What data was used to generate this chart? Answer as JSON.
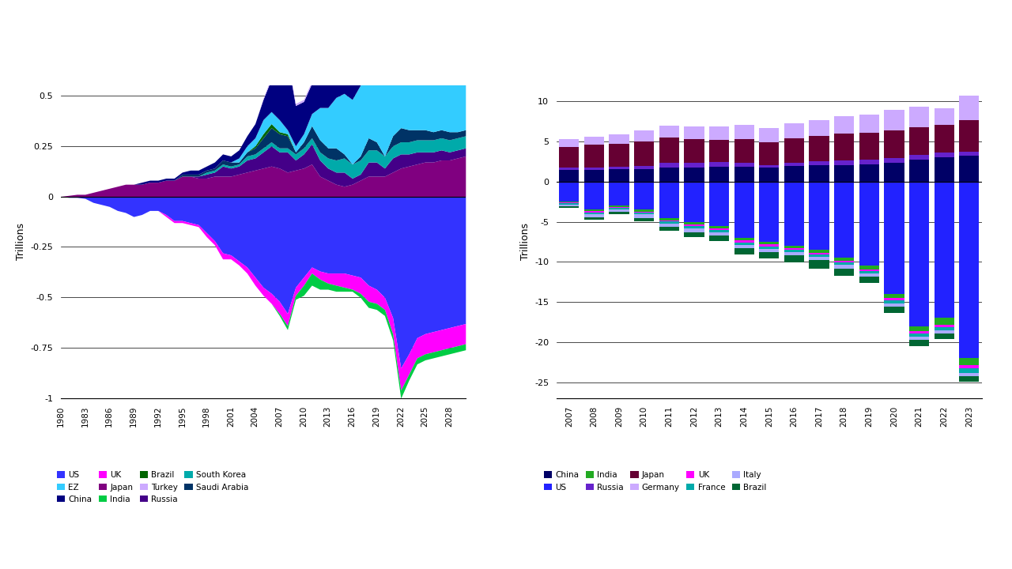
{
  "chart1": {
    "years": [
      1980,
      1981,
      1982,
      1983,
      1984,
      1985,
      1986,
      1987,
      1988,
      1989,
      1990,
      1991,
      1992,
      1993,
      1994,
      1995,
      1996,
      1997,
      1998,
      1999,
      2000,
      2001,
      2002,
      2003,
      2004,
      2005,
      2006,
      2007,
      2008,
      2009,
      2010,
      2011,
      2012,
      2013,
      2014,
      2015,
      2016,
      2017,
      2018,
      2019,
      2020,
      2021,
      2022,
      2023,
      2024,
      2025,
      2026,
      2027,
      2028,
      2029,
      2030
    ],
    "series": {
      "US": [
        0.0,
        -0.005,
        -0.005,
        -0.01,
        -0.03,
        -0.04,
        -0.05,
        -0.07,
        -0.08,
        -0.1,
        -0.09,
        -0.07,
        -0.07,
        -0.09,
        -0.12,
        -0.12,
        -0.13,
        -0.14,
        -0.18,
        -0.22,
        -0.28,
        -0.29,
        -0.32,
        -0.35,
        -0.4,
        -0.45,
        -0.48,
        -0.52,
        -0.58,
        -0.45,
        -0.4,
        -0.35,
        -0.37,
        -0.38,
        -0.38,
        -0.38,
        -0.39,
        -0.4,
        -0.44,
        -0.46,
        -0.5,
        -0.6,
        -0.85,
        -0.78,
        -0.7,
        -0.68,
        -0.67,
        -0.66,
        -0.65,
        -0.64,
        -0.63
      ],
      "EZ": [
        0.0,
        0.0,
        0.0,
        0.0,
        0.0,
        0.0,
        0.0,
        0.0,
        0.0,
        0.0,
        0.0,
        0.0,
        0.0,
        0.0,
        0.0,
        0.0,
        0.0,
        0.0,
        0.0,
        0.0,
        0.0,
        0.0,
        0.02,
        0.03,
        0.04,
        0.07,
        0.06,
        0.06,
        0.02,
        0.03,
        0.04,
        0.06,
        0.16,
        0.2,
        0.25,
        0.3,
        0.32,
        0.35,
        0.37,
        0.35,
        0.36,
        0.37,
        0.38,
        0.36,
        0.35,
        0.34,
        0.33,
        0.32,
        0.31,
        0.3,
        0.3
      ],
      "China": [
        0.0,
        0.0,
        0.0,
        0.0,
        0.0,
        0.0,
        0.0,
        0.0,
        0.0,
        0.0,
        0.01,
        0.01,
        0.01,
        0.01,
        0.01,
        0.01,
        0.02,
        0.02,
        0.02,
        0.03,
        0.03,
        0.03,
        0.04,
        0.05,
        0.07,
        0.1,
        0.16,
        0.26,
        0.35,
        0.2,
        0.16,
        0.15,
        0.14,
        0.13,
        0.22,
        0.16,
        0.18,
        0.2,
        0.18,
        0.14,
        0.22,
        0.32,
        0.28,
        0.25,
        0.25,
        0.24,
        0.24,
        0.23,
        0.23,
        0.22,
        0.22
      ],
      "UK": [
        0.0,
        0.0,
        0.0,
        0.0,
        0.0,
        0.0,
        0.0,
        0.0,
        0.0,
        0.0,
        0.0,
        0.0,
        0.0,
        -0.01,
        -0.01,
        -0.01,
        -0.01,
        -0.01,
        -0.02,
        -0.02,
        -0.03,
        -0.02,
        -0.02,
        -0.03,
        -0.04,
        -0.04,
        -0.05,
        -0.06,
        -0.06,
        -0.04,
        -0.04,
        -0.03,
        -0.04,
        -0.05,
        -0.06,
        -0.07,
        -0.07,
        -0.08,
        -0.08,
        -0.07,
        -0.06,
        -0.08,
        -0.11,
        -0.1,
        -0.1,
        -0.1,
        -0.1,
        -0.1,
        -0.1,
        -0.1,
        -0.1
      ],
      "Japan": [
        0.0,
        0.005,
        0.01,
        0.01,
        0.02,
        0.03,
        0.04,
        0.05,
        0.06,
        0.06,
        0.06,
        0.07,
        0.07,
        0.08,
        0.08,
        0.1,
        0.1,
        0.09,
        0.09,
        0.1,
        0.1,
        0.1,
        0.11,
        0.12,
        0.13,
        0.14,
        0.15,
        0.14,
        0.12,
        0.13,
        0.14,
        0.16,
        0.1,
        0.08,
        0.06,
        0.05,
        0.06,
        0.08,
        0.1,
        0.1,
        0.1,
        0.12,
        0.14,
        0.15,
        0.16,
        0.17,
        0.17,
        0.18,
        0.18,
        0.19,
        0.2
      ],
      "India": [
        0.0,
        0.0,
        0.0,
        0.0,
        0.0,
        0.0,
        0.0,
        0.0,
        0.0,
        0.0,
        0.0,
        0.0,
        0.0,
        0.0,
        0.0,
        0.0,
        0.0,
        0.0,
        0.0,
        0.0,
        0.0,
        0.0,
        0.0,
        0.0,
        0.0,
        0.0,
        0.0,
        -0.01,
        -0.02,
        -0.02,
        -0.05,
        -0.06,
        -0.05,
        -0.03,
        -0.03,
        -0.02,
        -0.01,
        -0.02,
        -0.03,
        -0.03,
        -0.03,
        -0.03,
        -0.04,
        -0.03,
        -0.03,
        -0.03,
        -0.03,
        -0.03,
        -0.03,
        -0.03,
        -0.03
      ],
      "Brazil": [
        0.0,
        0.0,
        0.0,
        0.0,
        0.0,
        0.0,
        0.0,
        0.0,
        0.0,
        0.0,
        0.0,
        0.0,
        0.0,
        0.0,
        0.0,
        0.0,
        0.0,
        0.0,
        0.0,
        0.0,
        0.0,
        0.0,
        0.0,
        0.0,
        0.01,
        0.02,
        0.02,
        0.01,
        0.01,
        0.0,
        -0.02,
        -0.03,
        -0.03,
        -0.02,
        -0.02,
        -0.02,
        -0.01,
        0.0,
        -0.01,
        -0.01,
        -0.01,
        -0.01,
        0.0,
        0.0,
        0.0,
        0.0,
        0.0,
        0.0,
        0.0,
        0.0,
        0.0
      ],
      "Turkey": [
        0.0,
        0.0,
        0.0,
        0.0,
        0.0,
        0.0,
        0.0,
        0.0,
        0.0,
        0.0,
        0.0,
        0.0,
        0.0,
        0.0,
        0.0,
        0.0,
        0.0,
        0.0,
        0.0,
        0.0,
        0.0,
        0.0,
        0.0,
        0.0,
        0.0,
        0.005,
        0.01,
        0.01,
        0.01,
        0.01,
        0.01,
        0.01,
        0.01,
        0.01,
        0.01,
        0.01,
        0.01,
        0.01,
        0.01,
        0.01,
        0.01,
        0.01,
        0.02,
        0.02,
        0.02,
        0.02,
        0.02,
        0.02,
        0.02,
        0.02,
        0.02
      ],
      "Russia": [
        0.0,
        0.0,
        0.0,
        0.0,
        0.0,
        0.0,
        0.0,
        0.0,
        0.0,
        0.0,
        0.0,
        0.0,
        0.0,
        0.0,
        0.0,
        0.0,
        0.0,
        0.01,
        0.02,
        0.02,
        0.05,
        0.04,
        0.04,
        0.06,
        0.06,
        0.08,
        0.1,
        0.08,
        0.1,
        0.05,
        0.07,
        0.1,
        0.08,
        0.06,
        0.06,
        0.07,
        0.03,
        0.03,
        0.07,
        0.07,
        0.04,
        0.07,
        0.07,
        0.06,
        0.06,
        0.05,
        0.05,
        0.05,
        0.04,
        0.04,
        0.04
      ],
      "South Korea": [
        0.0,
        0.0,
        0.0,
        0.0,
        0.0,
        0.0,
        0.0,
        0.0,
        0.0,
        0.0,
        0.0,
        0.0,
        0.0,
        0.0,
        0.0,
        0.0,
        0.0,
        0.0,
        0.01,
        0.01,
        0.01,
        0.01,
        0.01,
        0.02,
        0.02,
        0.02,
        0.02,
        0.02,
        0.02,
        0.03,
        0.03,
        0.03,
        0.04,
        0.05,
        0.06,
        0.07,
        0.07,
        0.07,
        0.06,
        0.06,
        0.06,
        0.06,
        0.06,
        0.06,
        0.06,
        0.06,
        0.06,
        0.06,
        0.06,
        0.06,
        0.06
      ],
      "Saudi Arabia": [
        0.0,
        0.0,
        0.0,
        0.0,
        0.0,
        0.0,
        0.0,
        0.0,
        0.0,
        0.0,
        0.0,
        0.0,
        0.0,
        0.0,
        0.0,
        0.01,
        0.01,
        0.01,
        0.01,
        0.01,
        0.02,
        0.02,
        0.01,
        0.02,
        0.03,
        0.05,
        0.07,
        0.07,
        0.06,
        0.01,
        0.03,
        0.06,
        0.06,
        0.05,
        0.06,
        0.02,
        0.0,
        0.02,
        0.06,
        0.04,
        0.0,
        0.05,
        0.07,
        0.06,
        0.05,
        0.05,
        0.04,
        0.04,
        0.04,
        0.03,
        0.03
      ]
    },
    "colors": {
      "US": "#3333FF",
      "EZ": "#33CCFF",
      "China": "#000080",
      "UK": "#FF00FF",
      "Japan": "#800080",
      "India": "#00CC44",
      "Brazil": "#006600",
      "Turkey": "#CCAAFF",
      "Russia": "#440088",
      "South Korea": "#00AAAA",
      "Saudi Arabia": "#003366"
    },
    "neg_order": [
      "US",
      "UK",
      "India"
    ],
    "pos_order": [
      "Japan",
      "Russia",
      "South Korea",
      "Saudi Arabia",
      "Brazil",
      "EZ",
      "China",
      "Turkey"
    ],
    "ylim": [
      -1.0,
      0.55
    ],
    "yticks": [
      -1,
      -0.75,
      -0.5,
      -0.25,
      0,
      0.25,
      0.5
    ],
    "ylabel": "Trillions",
    "xtick_years": [
      1980,
      1983,
      1986,
      1989,
      1992,
      1995,
      1998,
      2001,
      2004,
      2007,
      2010,
      2013,
      2016,
      2019,
      2022,
      2025,
      2028
    ]
  },
  "chart2": {
    "years_int": [
      2007,
      2008,
      2009,
      2010,
      2011,
      2012,
      2013,
      2014,
      2015,
      2016,
      2017,
      2018,
      2019,
      2020,
      2021,
      2022,
      2023
    ],
    "series": {
      "China": [
        1.5,
        1.5,
        1.6,
        1.6,
        1.8,
        1.8,
        1.9,
        1.9,
        1.8,
        2.0,
        2.1,
        2.1,
        2.2,
        2.3,
        2.7,
        3.0,
        3.2
      ],
      "US": [
        -2.5,
        -3.5,
        -3.0,
        -3.5,
        -4.5,
        -5.0,
        -5.5,
        -7.0,
        -7.5,
        -8.0,
        -8.5,
        -9.5,
        -10.5,
        -14.0,
        -18.0,
        -17.0,
        -22.0
      ],
      "India": [
        -0.1,
        -0.2,
        -0.2,
        -0.3,
        -0.3,
        -0.3,
        -0.3,
        -0.3,
        -0.3,
        -0.3,
        -0.4,
        -0.4,
        -0.4,
        -0.5,
        -0.6,
        -0.8,
        -0.9
      ],
      "Russia": [
        0.3,
        0.3,
        0.3,
        0.4,
        0.5,
        0.5,
        0.5,
        0.4,
        0.3,
        0.3,
        0.4,
        0.5,
        0.5,
        0.6,
        0.6,
        0.6,
        0.5
      ],
      "Japan": [
        2.5,
        2.8,
        2.8,
        3.0,
        3.2,
        3.0,
        2.8,
        3.0,
        2.8,
        3.1,
        3.2,
        3.4,
        3.4,
        3.5,
        3.5,
        3.5,
        4.0
      ],
      "Germany": [
        1.0,
        1.0,
        1.2,
        1.4,
        1.5,
        1.6,
        1.7,
        1.8,
        1.8,
        1.9,
        2.0,
        2.2,
        2.3,
        2.5,
        2.5,
        2.0,
        3.0
      ],
      "UK": [
        -0.1,
        -0.2,
        -0.1,
        -0.1,
        -0.1,
        -0.2,
        -0.2,
        -0.3,
        -0.3,
        -0.2,
        -0.2,
        -0.2,
        -0.2,
        -0.3,
        -0.3,
        -0.3,
        -0.4
      ],
      "France": [
        -0.2,
        -0.2,
        -0.2,
        -0.2,
        -0.3,
        -0.3,
        -0.3,
        -0.3,
        -0.3,
        -0.3,
        -0.3,
        -0.3,
        -0.3,
        -0.4,
        -0.4,
        -0.4,
        -0.5
      ],
      "Italy": [
        -0.2,
        -0.3,
        -0.3,
        -0.4,
        -0.4,
        -0.5,
        -0.4,
        -0.4,
        -0.4,
        -0.4,
        -0.4,
        -0.4,
        -0.4,
        -0.4,
        -0.4,
        -0.4,
        -0.4
      ],
      "Brazil": [
        -0.2,
        -0.3,
        -0.3,
        -0.4,
        -0.5,
        -0.6,
        -0.7,
        -0.8,
        -0.8,
        -0.9,
        -1.0,
        -0.9,
        -0.8,
        -0.8,
        -0.8,
        -0.7,
        -0.7
      ]
    },
    "colors": {
      "China": "#000066",
      "US": "#2222FF",
      "India": "#22AA22",
      "Russia": "#6622CC",
      "Japan": "#660033",
      "Germany": "#CCAAFF",
      "UK": "#FF00FF",
      "France": "#00AAAA",
      "Italy": "#AAAAFF",
      "Brazil": "#006633"
    },
    "neg_order": [
      "US",
      "India",
      "UK",
      "France",
      "Italy",
      "Brazil"
    ],
    "pos_order": [
      "China",
      "Russia",
      "Japan",
      "Germany"
    ],
    "ylim": [
      -27,
      12
    ],
    "yticks": [
      -25,
      -20,
      -15,
      -10,
      -5,
      0,
      5,
      10
    ],
    "ylabel": "Trillions",
    "xtick_years": [
      2007,
      2008,
      2009,
      2010,
      2011,
      2012,
      2013,
      2014,
      2015,
      2016,
      2017,
      2018,
      2019,
      2020,
      2021,
      2022,
      2023
    ]
  },
  "background_color": "#FFFFFF"
}
